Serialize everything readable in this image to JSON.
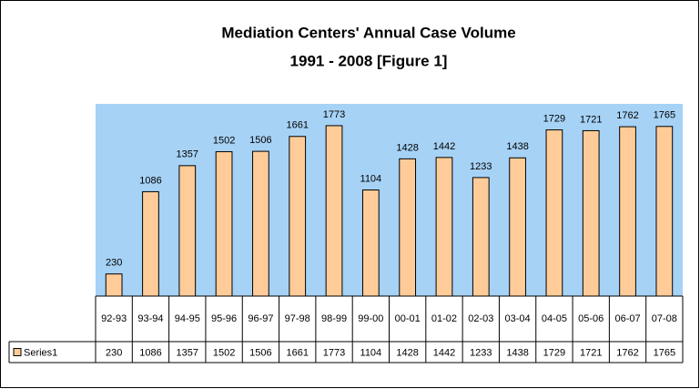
{
  "chart_data": {
    "type": "bar",
    "title": "Mediation Centers' Annual Case Volume",
    "subtitle": "1991 - 2008 [Figure 1]",
    "categories": [
      "92-93",
      "93-94",
      "94-95",
      "95-96",
      "96-97",
      "97-98",
      "98-99",
      "99-00",
      "00-01",
      "01-02",
      "02-03",
      "03-04",
      "04-05",
      "05-06",
      "06-07",
      "07-08"
    ],
    "series": [
      {
        "name": "Series1",
        "color": "#ffcc99",
        "values": [
          230,
          1086,
          1357,
          1502,
          1506,
          1661,
          1773,
          1104,
          1428,
          1442,
          1233,
          1438,
          1729,
          1721,
          1762,
          1765
        ]
      }
    ],
    "ylim": [
      0,
      2000
    ],
    "plot_background": "#a6d2f6"
  }
}
